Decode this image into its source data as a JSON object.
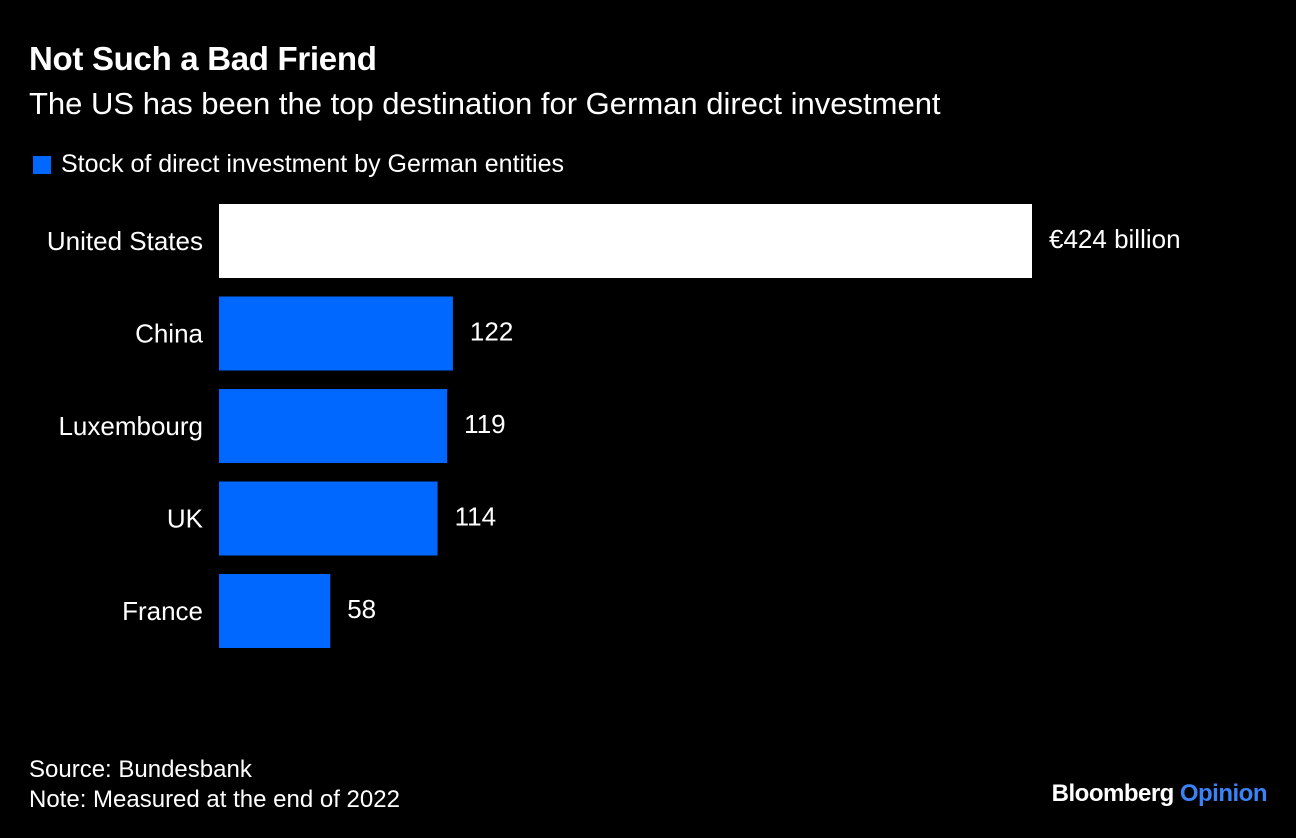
{
  "header": {
    "title": "Not Such a Bad Friend",
    "subtitle": "The US has been the top destination for German direct investment"
  },
  "legend": {
    "label": "Stock of direct investment by German entities",
    "color": "#0068ff"
  },
  "footer": {
    "source": "Source: Bundesbank",
    "note": "Note: Measured at the end of 2022"
  },
  "brand": {
    "name": "Bloomberg",
    "section": "Opinion",
    "section_color": "#3b82f6"
  },
  "chart_data": {
    "type": "bar",
    "orientation": "horizontal",
    "title": "Not Such a Bad Friend",
    "subtitle": "The US has been the top destination for German direct investment",
    "categories": [
      "United States",
      "China",
      "Luxembourg",
      "UK",
      "France"
    ],
    "series": [
      {
        "name": "Stock of direct investment by German entities",
        "values": [
          424,
          122,
          119,
          114,
          58
        ],
        "data_labels": [
          "€424 billion",
          "122",
          "119",
          "114",
          "58"
        ]
      }
    ],
    "colors": [
      "#ffffff",
      "#0068ff",
      "#0068ff",
      "#0068ff",
      "#0068ff"
    ],
    "xlim": [
      0,
      424
    ],
    "xlabel": "",
    "ylabel": "",
    "grid": false,
    "legend_position": "top-left"
  }
}
